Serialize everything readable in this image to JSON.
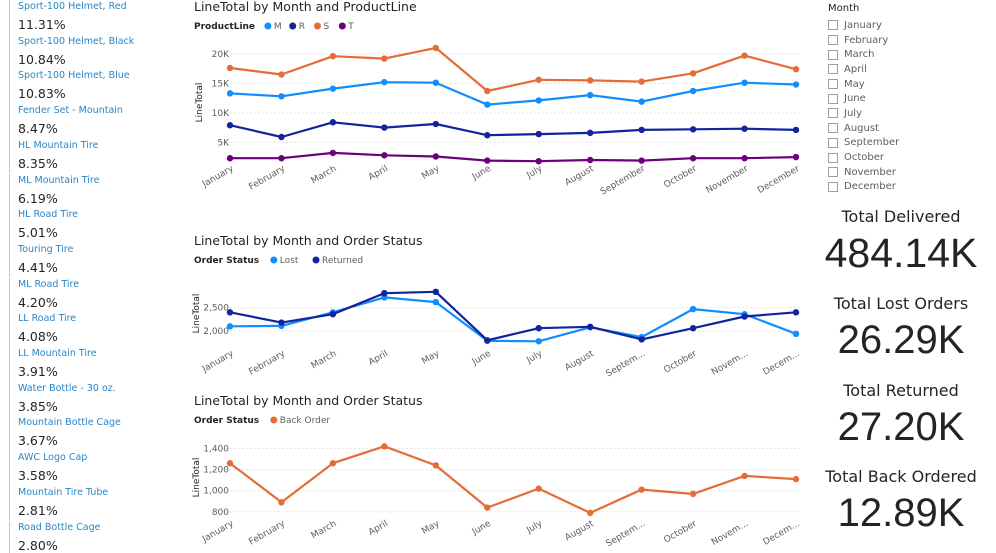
{
  "product_list": [
    {
      "label": "Sport-100 Helmet, Red",
      "value": "11.31%"
    },
    {
      "label": "Sport-100 Helmet, Black",
      "value": "10.84%"
    },
    {
      "label": "Sport-100 Helmet, Blue",
      "value": "10.83%"
    },
    {
      "label": "Fender Set - Mountain",
      "value": "8.47%"
    },
    {
      "label": "HL Mountain Tire",
      "value": "8.35%"
    },
    {
      "label": "ML Mountain Tire",
      "value": "6.19%"
    },
    {
      "label": "HL Road Tire",
      "value": "5.01%"
    },
    {
      "label": "Touring Tire",
      "value": "4.41%"
    },
    {
      "label": "ML Road Tire",
      "value": "4.20%"
    },
    {
      "label": "LL Road Tire",
      "value": "4.08%"
    },
    {
      "label": "LL Mountain Tire",
      "value": "3.91%"
    },
    {
      "label": "Water Bottle - 30 oz.",
      "value": "3.85%"
    },
    {
      "label": "Mountain Bottle Cage",
      "value": "3.67%"
    },
    {
      "label": "AWC Logo Cap",
      "value": "3.58%"
    },
    {
      "label": "Mountain Tire Tube",
      "value": "2.81%"
    },
    {
      "label": "Road Bottle Cage",
      "value": "2.80%"
    }
  ],
  "slicer": {
    "title": "Month",
    "items": [
      "January",
      "February",
      "March",
      "April",
      "May",
      "June",
      "July",
      "August",
      "September",
      "October",
      "November",
      "December"
    ]
  },
  "cards": [
    {
      "label": "Total Delivered",
      "value": "484.14K"
    },
    {
      "label": "Total Lost Orders",
      "value": "26.29K"
    },
    {
      "label": "Total Returned",
      "value": "27.20K"
    },
    {
      "label": "Total Back Ordered",
      "value": "12.89K"
    }
  ],
  "chart_data": [
    {
      "type": "line",
      "title": "LineTotal by Month and ProductLine",
      "legend_title": "ProductLine",
      "legend_position": "top-left",
      "xlabel": "",
      "ylabel": "LineTotal",
      "categories": [
        "January",
        "February",
        "March",
        "April",
        "May",
        "June",
        "July",
        "August",
        "September",
        "October",
        "November",
        "December"
      ],
      "x_tick_labels": [
        "January",
        "February",
        "March",
        "April",
        "May",
        "June",
        "July",
        "August",
        "September",
        "October",
        "November",
        "December"
      ],
      "ylim": [
        2000,
        21500
      ],
      "y_ticks": [
        5000,
        10000,
        15000,
        20000
      ],
      "y_tick_labels": [
        "5K",
        "10K",
        "15K",
        "20K"
      ],
      "grid": true,
      "series": [
        {
          "name": "M",
          "color": "#118dff",
          "values": [
            13300,
            12800,
            14100,
            15200,
            15100,
            11400,
            12100,
            13000,
            11900,
            13700,
            15100,
            14800
          ]
        },
        {
          "name": "R",
          "color": "#12239e",
          "values": [
            7900,
            5900,
            8400,
            7500,
            8100,
            6200,
            6400,
            6600,
            7100,
            7200,
            7300,
            7100
          ]
        },
        {
          "name": "S",
          "color": "#e66c37",
          "values": [
            17600,
            16500,
            19600,
            19200,
            21000,
            13700,
            15600,
            15500,
            15300,
            16700,
            19700,
            17400
          ]
        },
        {
          "name": "T",
          "color": "#6b007b",
          "values": [
            2300,
            2300,
            3200,
            2800,
            2600,
            1900,
            1800,
            2000,
            1900,
            2300,
            2300,
            2500
          ]
        }
      ]
    },
    {
      "type": "line",
      "title": "LineTotal by Month and Order Status",
      "legend_title": "Order Status",
      "legend_position": "top-left",
      "xlabel": "",
      "ylabel": "LineTotal",
      "categories": [
        "January",
        "February",
        "March",
        "April",
        "May",
        "June",
        "July",
        "August",
        "September",
        "October",
        "November",
        "December"
      ],
      "x_tick_labels": [
        "January",
        "February",
        "March",
        "April",
        "May",
        "June",
        "July",
        "August",
        "Septem...",
        "October",
        "Novem...",
        "Decem..."
      ],
      "ylim": [
        1700,
        3050
      ],
      "y_ticks": [
        2000,
        2500
      ],
      "y_tick_labels": [
        "2,000",
        "2,500"
      ],
      "grid": true,
      "series": [
        {
          "name": "Lost",
          "color": "#118dff",
          "values": [
            2100,
            2110,
            2400,
            2720,
            2620,
            1790,
            1780,
            2080,
            1870,
            2470,
            2360,
            1940
          ]
        },
        {
          "name": "Returned",
          "color": "#12239e",
          "values": [
            2400,
            2180,
            2360,
            2810,
            2840,
            1800,
            2060,
            2090,
            1820,
            2060,
            2310,
            2400
          ]
        }
      ]
    },
    {
      "type": "line",
      "title": "LineTotal by Month and Order Status",
      "legend_title": "Order Status",
      "legend_position": "top-left",
      "xlabel": "",
      "ylabel": "LineTotal",
      "categories": [
        "January",
        "February",
        "March",
        "April",
        "May",
        "June",
        "July",
        "August",
        "September",
        "October",
        "November",
        "December"
      ],
      "x_tick_labels": [
        "January",
        "February",
        "March",
        "April",
        "May",
        "June",
        "July",
        "August",
        "Septem...",
        "October",
        "Novem...",
        "Decem..."
      ],
      "ylim": [
        770,
        1480
      ],
      "y_ticks": [
        800,
        1000,
        1200,
        1400
      ],
      "y_tick_labels": [
        "800",
        "1,000",
        "1,200",
        "1,400"
      ],
      "grid": true,
      "series": [
        {
          "name": "Back Order",
          "color": "#e66c37",
          "values": [
            1260,
            890,
            1260,
            1420,
            1240,
            840,
            1020,
            790,
            1010,
            970,
            1140,
            1110
          ]
        }
      ]
    }
  ]
}
